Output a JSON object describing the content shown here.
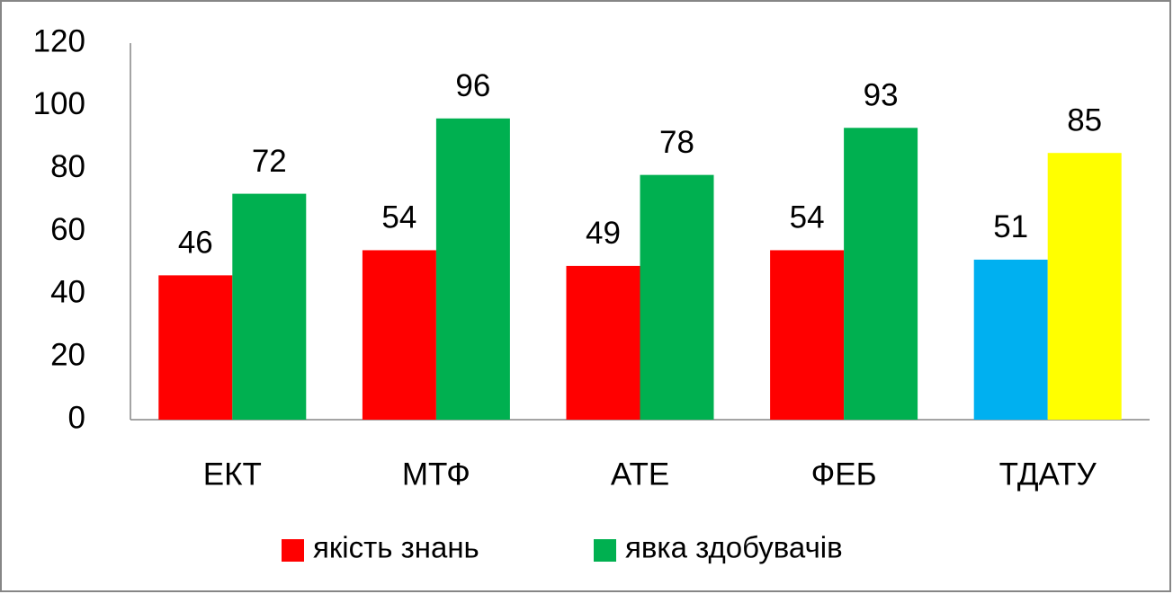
{
  "chart_data": {
    "type": "bar",
    "categories": [
      "ЕКТ",
      "МТФ",
      "АТЕ",
      "ФЕБ",
      "ТДАТУ"
    ],
    "series": [
      {
        "name": "якість знань",
        "color": "#ff0000",
        "values": [
          46,
          54,
          49,
          54,
          51
        ],
        "colors": [
          "#ff0000",
          "#ff0000",
          "#ff0000",
          "#ff0000",
          "#00b0f0"
        ]
      },
      {
        "name": "явка здобувачів",
        "color": "#00b050",
        "values": [
          72,
          96,
          78,
          93,
          85
        ],
        "colors": [
          "#00b050",
          "#00b050",
          "#00b050",
          "#00b050",
          "#ffff00"
        ]
      }
    ],
    "ylim": [
      0,
      120
    ],
    "yticks": [
      0,
      20,
      40,
      60,
      80,
      100,
      120
    ],
    "grid": false,
    "legend": "bottom"
  }
}
